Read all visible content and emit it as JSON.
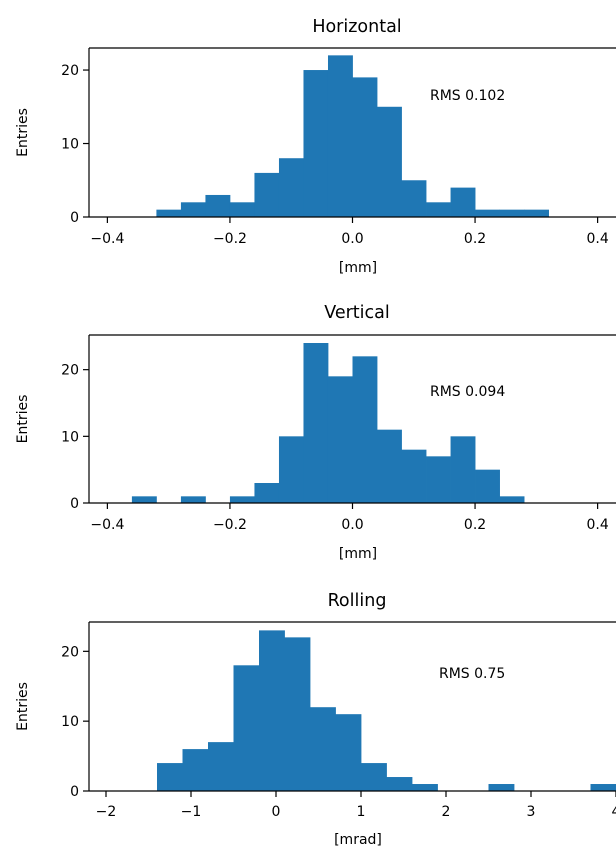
{
  "chart_data": [
    {
      "type": "bar",
      "title": "Horizontal",
      "xlabel": "[mm]",
      "ylabel": "Entries",
      "annotation": "RMS 0.102",
      "xlim": [
        -0.43,
        0.43
      ],
      "ylim": [
        0,
        23
      ],
      "xticks": [
        -0.4,
        -0.2,
        0.0,
        0.2,
        0.4
      ],
      "xtick_labels": [
        "−0.4",
        "−0.2",
        "0.0",
        "0.2",
        "0.4"
      ],
      "yticks": [
        0,
        10,
        20
      ],
      "ytick_labels": [
        "0",
        "10",
        "20"
      ],
      "bin_width": 0.04,
      "bin_start": -0.32,
      "values": [
        1,
        2,
        3,
        2,
        6,
        8,
        20,
        22,
        19,
        15,
        5,
        2,
        4,
        1,
        1,
        1
      ],
      "color": "#1f77b4"
    },
    {
      "type": "bar",
      "title": "Vertical",
      "xlabel": "[mm]",
      "ylabel": "Entries",
      "annotation": "RMS 0.094",
      "xlim": [
        -0.43,
        0.43
      ],
      "ylim": [
        0,
        25.2
      ],
      "xticks": [
        -0.4,
        -0.2,
        0.0,
        0.2,
        0.4
      ],
      "xtick_labels": [
        "−0.4",
        "−0.2",
        "0.0",
        "0.2",
        "0.4"
      ],
      "yticks": [
        0,
        10,
        20
      ],
      "ytick_labels": [
        "0",
        "10",
        "20"
      ],
      "bin_width": 0.04,
      "bin_start": -0.36,
      "values": [
        1,
        0,
        1,
        0,
        1,
        3,
        10,
        24,
        19,
        22,
        11,
        8,
        7,
        10,
        5,
        1
      ],
      "color": "#1f77b4"
    },
    {
      "type": "bar",
      "title": "Rolling",
      "xlabel": "[mrad]",
      "ylabel": "Entries",
      "annotation": "RMS 0.75",
      "xlim": [
        -2.2,
        4.0
      ],
      "ylim": [
        0,
        24.2
      ],
      "xticks": [
        -2,
        -1,
        0,
        1,
        2,
        3,
        4
      ],
      "xtick_labels": [
        "−2",
        "−1",
        "0",
        "1",
        "2",
        "3",
        "4"
      ],
      "yticks": [
        0,
        10,
        20
      ],
      "ytick_labels": [
        "0",
        "10",
        "20"
      ],
      "bin_width": 0.3,
      "bin_start": -1.4,
      "values": [
        4,
        6,
        7,
        18,
        23,
        22,
        12,
        11,
        4,
        2,
        1,
        0,
        0,
        1,
        0,
        0,
        0,
        1
      ],
      "color": "#1f77b4"
    }
  ]
}
